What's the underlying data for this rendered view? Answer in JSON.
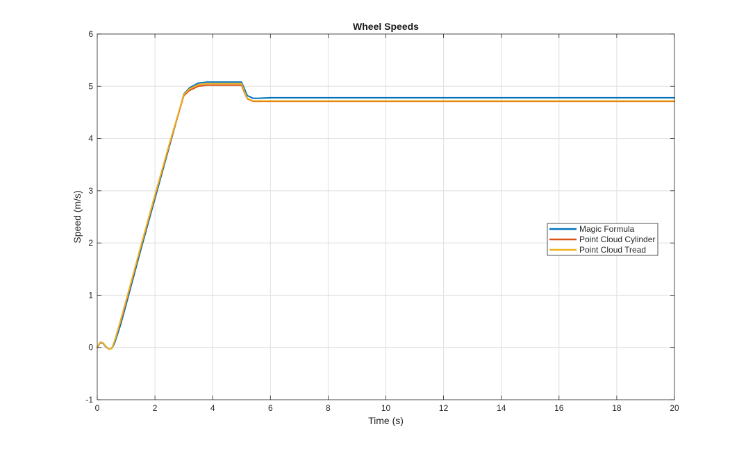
{
  "chart_data": {
    "type": "line",
    "title": "Wheel Speeds",
    "xlabel": "Time (s)",
    "ylabel": "Speed (m/s)",
    "xlim": [
      0,
      20
    ],
    "ylim": [
      -1,
      6
    ],
    "xticks": [
      0,
      2,
      4,
      6,
      8,
      10,
      12,
      14,
      16,
      18,
      20
    ],
    "yticks": [
      -1,
      0,
      1,
      2,
      3,
      4,
      5,
      6
    ],
    "grid": true,
    "legend_location": "right",
    "series": [
      {
        "name": "Magic Formula",
        "color": "#0072BD",
        "x": [
          0,
          0.1,
          0.2,
          0.3,
          0.4,
          0.5,
          0.6,
          0.8,
          1.0,
          1.5,
          2.0,
          2.5,
          3.0,
          3.2,
          3.5,
          3.8,
          4.0,
          4.5,
          5.0,
          5.1,
          5.2,
          5.4,
          5.6,
          6,
          8,
          10,
          12,
          14,
          16,
          18,
          20
        ],
        "y": [
          0.0,
          0.09,
          0.08,
          0.01,
          -0.03,
          -0.02,
          0.08,
          0.42,
          0.82,
          1.85,
          2.85,
          3.85,
          4.85,
          4.97,
          5.06,
          5.08,
          5.08,
          5.08,
          5.08,
          4.95,
          4.82,
          4.77,
          4.77,
          4.78,
          4.78,
          4.78,
          4.78,
          4.78,
          4.78,
          4.78,
          4.78
        ]
      },
      {
        "name": "Point Cloud Cylinder",
        "color": "#D95319",
        "x": [
          0,
          0.1,
          0.2,
          0.3,
          0.4,
          0.5,
          0.6,
          0.8,
          1.0,
          1.5,
          2.0,
          2.5,
          3.0,
          3.2,
          3.5,
          3.8,
          4.0,
          4.5,
          5.0,
          5.1,
          5.2,
          5.4,
          5.6,
          6,
          8,
          10,
          12,
          14,
          16,
          18,
          20
        ],
        "y": [
          0.0,
          0.1,
          0.09,
          0.02,
          -0.03,
          -0.02,
          0.12,
          0.48,
          0.88,
          1.9,
          2.9,
          3.88,
          4.82,
          4.92,
          5.0,
          5.02,
          5.02,
          5.02,
          5.02,
          4.88,
          4.76,
          4.71,
          4.71,
          4.71,
          4.71,
          4.71,
          4.71,
          4.71,
          4.71,
          4.71,
          4.71
        ]
      },
      {
        "name": "Point Cloud Tread",
        "color": "#EDB120",
        "x": [
          0,
          0.1,
          0.2,
          0.3,
          0.4,
          0.5,
          0.6,
          0.8,
          1.0,
          1.5,
          2.0,
          2.5,
          3.0,
          3.2,
          3.5,
          3.8,
          4.0,
          4.5,
          5.0,
          5.1,
          5.2,
          5.4,
          5.6,
          6,
          8,
          10,
          12,
          14,
          16,
          18,
          20
        ],
        "y": [
          0.0,
          0.1,
          0.09,
          0.02,
          -0.03,
          -0.02,
          0.12,
          0.5,
          0.9,
          1.92,
          2.92,
          3.9,
          4.84,
          4.95,
          5.03,
          5.05,
          5.05,
          5.05,
          5.05,
          4.9,
          4.77,
          4.72,
          4.72,
          4.72,
          4.72,
          4.72,
          4.72,
          4.72,
          4.72,
          4.72,
          4.72
        ]
      }
    ]
  }
}
